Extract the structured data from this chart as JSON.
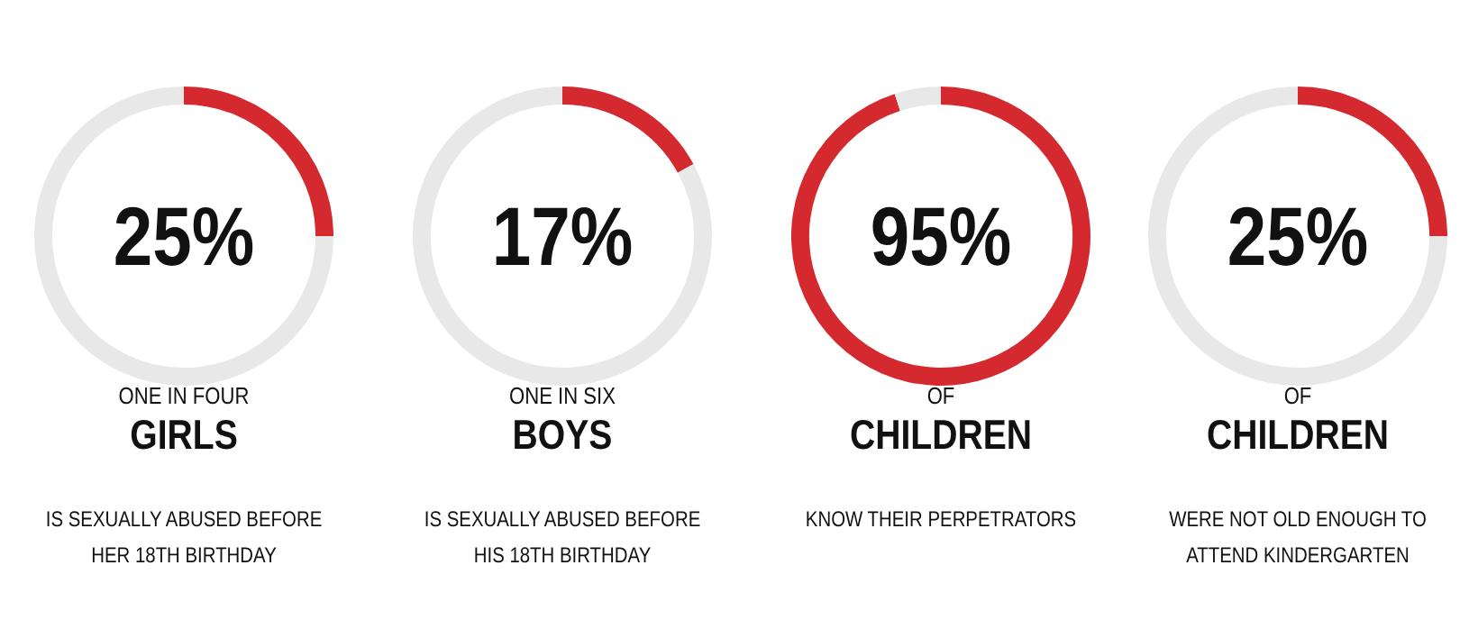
{
  "chart_data": [
    {
      "type": "donut",
      "categories": [
        null,
        null
      ],
      "values": [
        25,
        75
      ],
      "colors": [
        "#d42a2f",
        "#e8e8e8"
      ],
      "subtitle": "ONE IN FOUR",
      "title": "GIRLS",
      "annotations": [
        "25%",
        "IS SEXUALLY ABUSED BEFORE HER 18TH BIRTHDAY"
      ]
    },
    {
      "type": "donut",
      "categories": [
        null,
        null
      ],
      "values": [
        17,
        83
      ],
      "colors": [
        "#d42a2f",
        "#e8e8e8"
      ],
      "subtitle": "ONE IN SIX",
      "title": "BOYS",
      "annotations": [
        "17%",
        "IS SEXUALLY ABUSED BEFORE HIS 18TH BIRTHDAY"
      ]
    },
    {
      "type": "donut",
      "categories": [
        null,
        null
      ],
      "values": [
        95,
        5
      ],
      "colors": [
        "#d42a2f",
        "#e8e8e8"
      ],
      "subtitle": "OF",
      "title": "CHILDREN",
      "annotations": [
        "95%",
        "KNOW THEIR PERPETRATORS"
      ]
    },
    {
      "type": "donut",
      "categories": [
        null,
        null
      ],
      "values": [
        25,
        75
      ],
      "colors": [
        "#d42a2f",
        "#e8e8e8"
      ],
      "subtitle": "OF",
      "title": "CHILDREN",
      "annotations": [
        "25%",
        "WERE NOT OLD ENOUGH TO ATTEND KINDERGARTEN"
      ]
    }
  ]
}
